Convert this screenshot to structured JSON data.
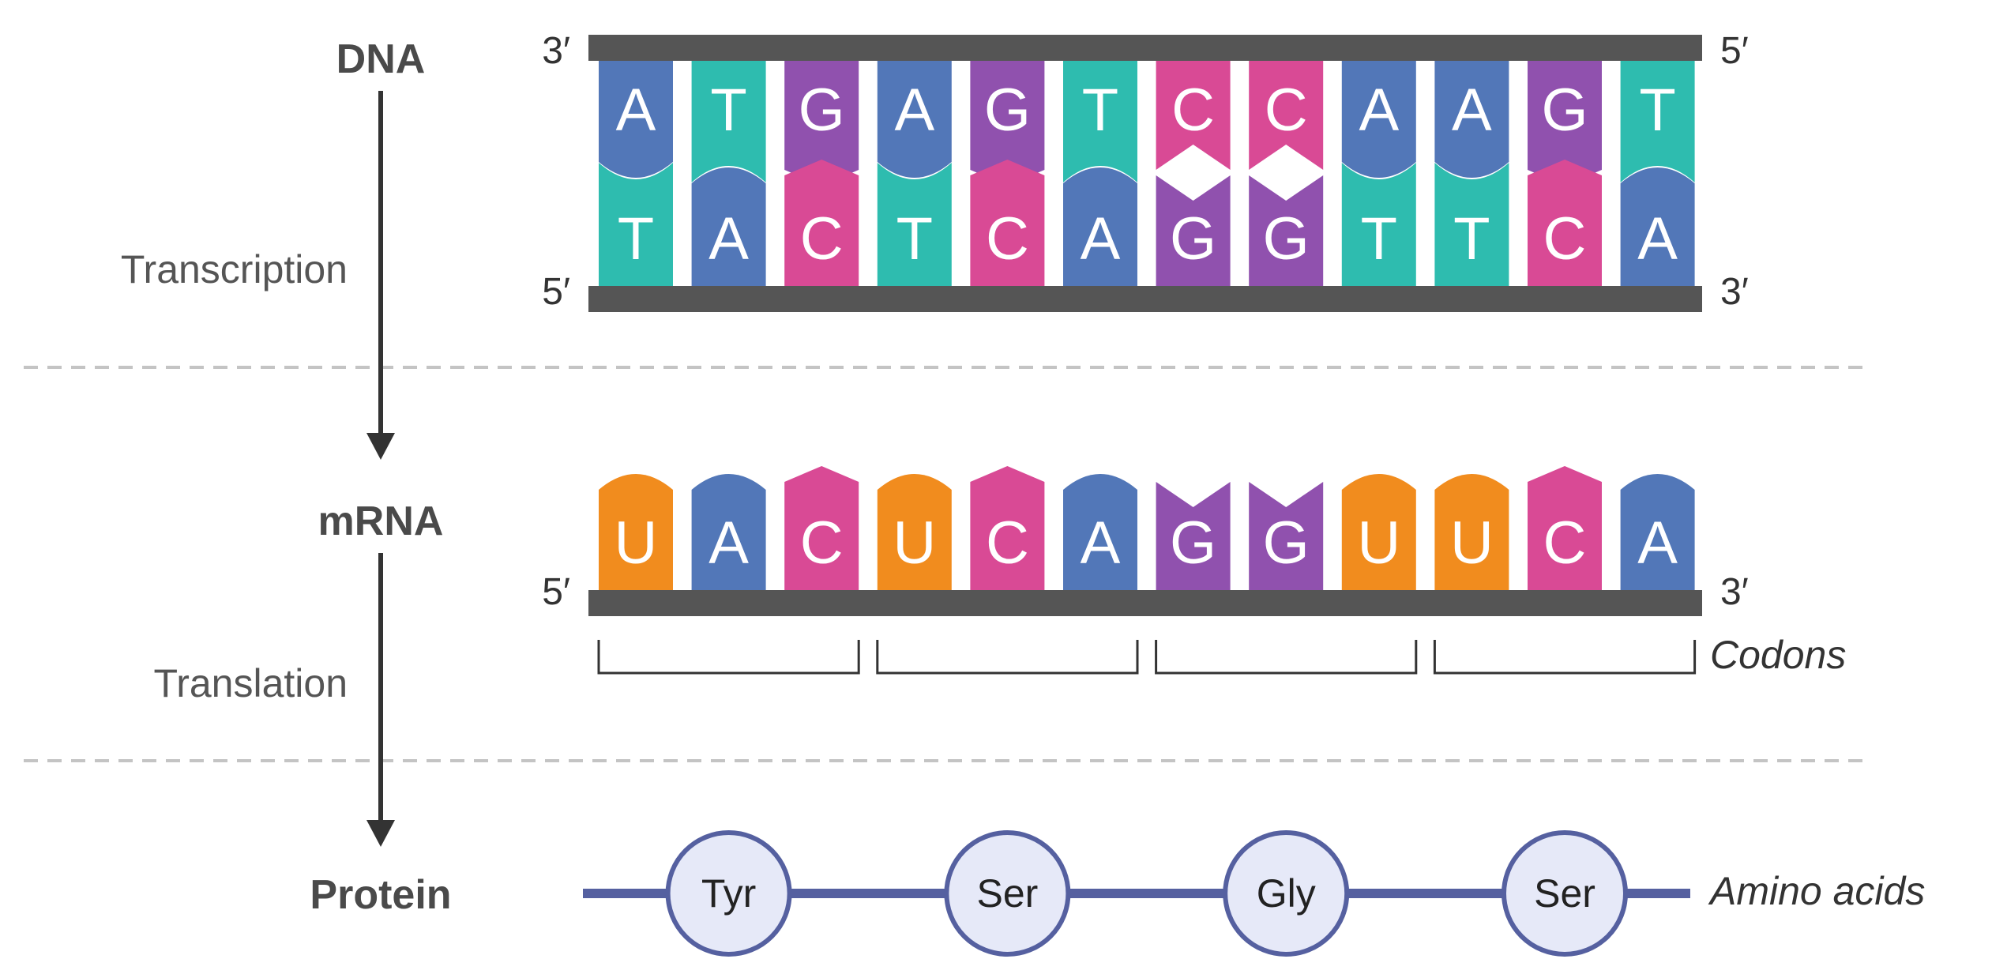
{
  "stages": {
    "dna": "DNA",
    "mrna": "mRNA",
    "protein": "Protein"
  },
  "processes": {
    "transcription": "Transcription",
    "translation": "Translation"
  },
  "dna": {
    "top_left_end": "3′",
    "top_right_end": "5′",
    "bottom_left_end": "5′",
    "bottom_right_end": "3′",
    "top_strand": [
      "A",
      "T",
      "G",
      "A",
      "G",
      "T",
      "C",
      "C",
      "A",
      "A",
      "G",
      "T"
    ],
    "bottom_strand": [
      "T",
      "A",
      "C",
      "T",
      "C",
      "A",
      "G",
      "G",
      "T",
      "T",
      "C",
      "A"
    ]
  },
  "mrna": {
    "left_end": "5′",
    "right_end": "3′",
    "sequence": [
      "U",
      "A",
      "C",
      "U",
      "C",
      "A",
      "G",
      "G",
      "U",
      "U",
      "C",
      "A"
    ],
    "codons_label": "Codons"
  },
  "protein": {
    "amino_acids": [
      "Tyr",
      "Ser",
      "Gly",
      "Ser"
    ],
    "amino_acids_label": "Amino acids"
  },
  "colors": {
    "A": "#5277b8",
    "T": "#2ebcaf",
    "G": "#9051ae",
    "C": "#d94a95",
    "U": "#f18c1e",
    "backbone": "#555555",
    "peptide": "#5560a0",
    "amino_fill": "#e6e9f8",
    "arrow": "#333333",
    "divider": "#c4c4c4"
  },
  "icons": {
    "process_arrow": "down-arrow-icon",
    "codon_bracket": "bracket-icon"
  }
}
